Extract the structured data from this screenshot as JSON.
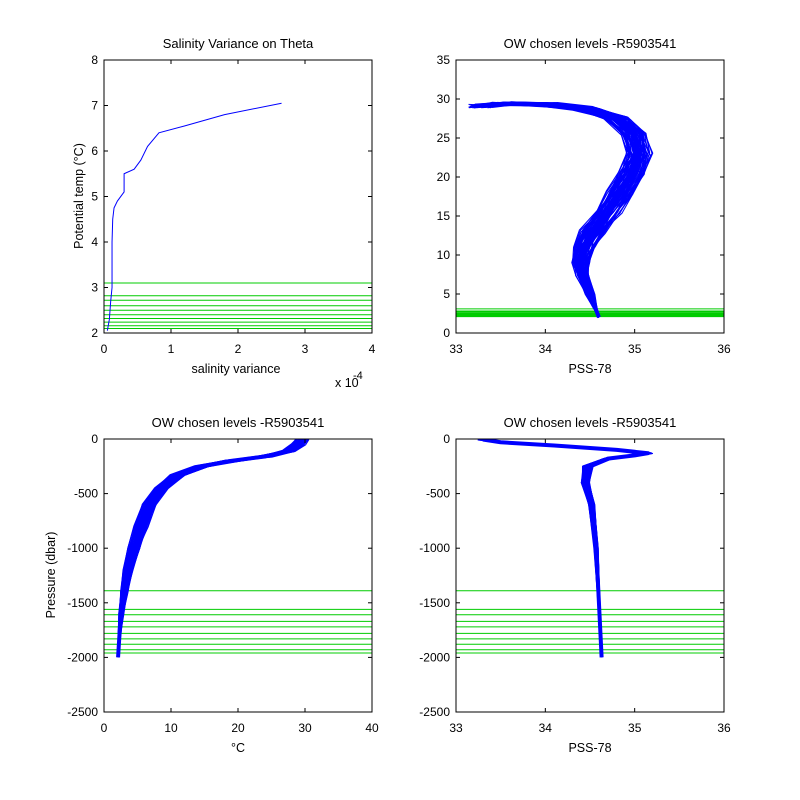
{
  "chart_data": [
    {
      "type": "line",
      "title": "Salinity Variance on Theta",
      "xlabel": "salinity variance",
      "ylabel": "Potential temp (°C)",
      "x_multiplier": "x 10",
      "x_exponent": "-4",
      "xlim": [
        0,
        4
      ],
      "ylim": [
        2,
        8
      ],
      "x_ticks": [
        "0",
        "1",
        "2",
        "3",
        "4"
      ],
      "y_ticks": [
        "2",
        "3",
        "4",
        "5",
        "6",
        "7",
        "8"
      ],
      "series_color": "#0000ff",
      "series": [
        {
          "points": [
            [
              0.05,
              2.05
            ],
            [
              0.08,
              2.3
            ],
            [
              0.1,
              2.7
            ],
            [
              0.12,
              3.0
            ],
            [
              0.12,
              3.5
            ],
            [
              0.12,
              4.0
            ],
            [
              0.13,
              4.5
            ],
            [
              0.15,
              4.75
            ],
            [
              0.2,
              4.9
            ],
            [
              0.3,
              5.1
            ],
            [
              0.3,
              5.5
            ],
            [
              0.45,
              5.6
            ],
            [
              0.55,
              5.8
            ],
            [
              0.65,
              6.1
            ],
            [
              0.82,
              6.4
            ],
            [
              1.2,
              6.55
            ],
            [
              1.8,
              6.8
            ],
            [
              2.65,
              7.05
            ]
          ]
        }
      ],
      "level_color": "#00cc00",
      "levels": [
        3.1,
        2.82,
        2.72,
        2.6,
        2.5,
        2.4,
        2.32,
        2.24,
        2.16,
        2.1
      ]
    },
    {
      "type": "line",
      "title": "OW chosen levels -R5903541",
      "xlabel": "PSS-78",
      "ylabel": "",
      "xlim": [
        33,
        36
      ],
      "ylim": [
        0,
        35
      ],
      "x_ticks": [
        "33",
        "34",
        "35",
        "36"
      ],
      "y_ticks": [
        "0",
        "5",
        "10",
        "15",
        "20",
        "25",
        "30",
        "35"
      ],
      "series_color": "#0000ff",
      "profile_template": [
        [
          34.6,
          2.0
        ],
        [
          34.55,
          3.5
        ],
        [
          34.5,
          5.0
        ],
        [
          34.42,
          7.5
        ],
        [
          34.4,
          9.0
        ],
        [
          34.45,
          11.0
        ],
        [
          34.55,
          13.0
        ],
        [
          34.7,
          15.5
        ],
        [
          34.85,
          18.0
        ],
        [
          34.98,
          20.5
        ],
        [
          35.05,
          23.0
        ],
        [
          35.0,
          25.5
        ],
        [
          34.8,
          27.5
        ],
        [
          34.45,
          28.8
        ],
        [
          34.0,
          29.3
        ],
        [
          33.55,
          29.4
        ],
        [
          33.3,
          29.1
        ]
      ],
      "level_color": "#00cc00",
      "levels": [
        3.1,
        2.82,
        2.72,
        2.6,
        2.5,
        2.4,
        2.32,
        2.24,
        2.16,
        2.1
      ]
    },
    {
      "type": "line",
      "title": "OW chosen levels -R5903541",
      "xlabel": "°C",
      "ylabel": "Pressure (dbar)",
      "xlim": [
        0,
        40
      ],
      "ylim": [
        -2500,
        0
      ],
      "x_ticks": [
        "0",
        "10",
        "20",
        "30",
        "40"
      ],
      "y_ticks": [
        "-2500",
        "-2000",
        "-1500",
        "-1000",
        "-500",
        "0"
      ],
      "series_color": "#0000ff",
      "profile_template": [
        [
          2.1,
          -2000
        ],
        [
          2.3,
          -1800
        ],
        [
          2.6,
          -1600
        ],
        [
          3.0,
          -1400
        ],
        [
          3.6,
          -1200
        ],
        [
          4.5,
          -1000
        ],
        [
          5.5,
          -800
        ],
        [
          6.8,
          -600
        ],
        [
          8.5,
          -450
        ],
        [
          11.0,
          -330
        ],
        [
          14.5,
          -250
        ],
        [
          19.0,
          -200
        ],
        [
          24.0,
          -160
        ],
        [
          27.5,
          -110
        ],
        [
          29.0,
          -50
        ],
        [
          29.5,
          -5
        ]
      ],
      "level_color": "#00cc00",
      "levels": [
        -1390,
        -1560,
        -1610,
        -1670,
        -1720,
        -1780,
        -1830,
        -1880,
        -1930,
        -1960
      ]
    },
    {
      "type": "line",
      "title": "OW chosen levels -R5903541",
      "xlabel": "PSS-78",
      "ylabel": "",
      "xlim": [
        33,
        36
      ],
      "ylim": [
        -2500,
        0
      ],
      "x_ticks": [
        "33",
        "34",
        "35",
        "36"
      ],
      "y_ticks": [
        "-2500",
        "-2000",
        "-1500",
        "-1000",
        "-500",
        "0"
      ],
      "series_color": "#0000ff",
      "profile_template": [
        [
          34.63,
          -2000
        ],
        [
          34.6,
          -1500
        ],
        [
          34.57,
          -1000
        ],
        [
          34.52,
          -600
        ],
        [
          34.45,
          -400
        ],
        [
          34.48,
          -250
        ],
        [
          34.7,
          -180
        ],
        [
          35.0,
          -150
        ],
        [
          35.15,
          -130
        ],
        [
          34.8,
          -100
        ],
        [
          34.1,
          -60
        ],
        [
          33.5,
          -30
        ],
        [
          33.3,
          -5
        ]
      ],
      "level_color": "#00cc00",
      "levels": [
        -1390,
        -1560,
        -1610,
        -1670,
        -1720,
        -1780,
        -1830,
        -1880,
        -1930,
        -1960
      ]
    }
  ]
}
